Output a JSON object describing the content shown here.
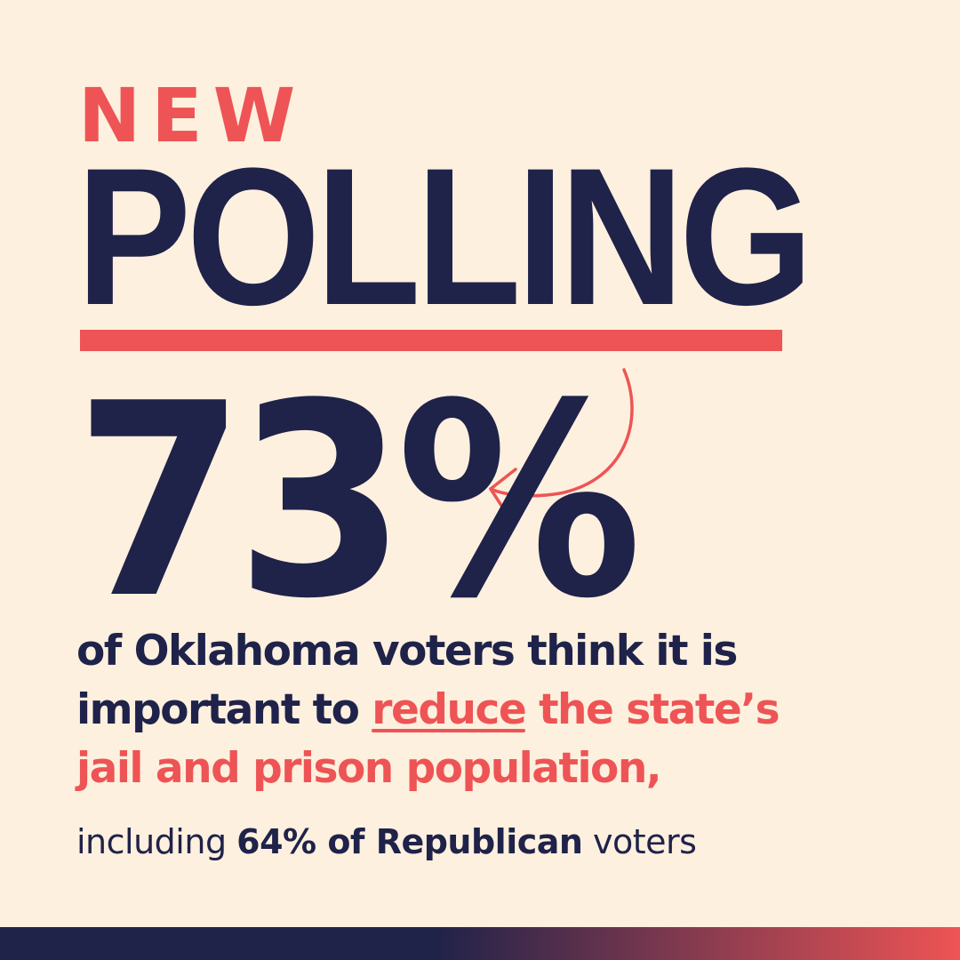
{
  "colors": {
    "background": "#FDF0DE",
    "navy": "#1F2249",
    "coral": "#EE5455"
  },
  "kicker": "NEW",
  "headline": "POLLING",
  "stat": "73%",
  "body": {
    "line1": "of Oklahoma voters think it is",
    "line2_pre": "important to ",
    "highlight_word": "reduce",
    "line2_post": " the state’s",
    "line3": "jail and prison population,"
  },
  "footnote": {
    "pre": "including ",
    "bold": "64% of Republican",
    "post": " voters"
  },
  "icons": {
    "arrow": "curved-arrow-icon"
  }
}
